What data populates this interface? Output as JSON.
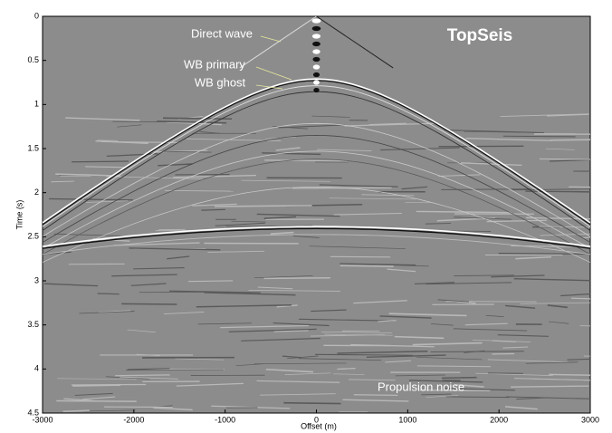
{
  "chart_data": {
    "type": "seismic",
    "title": "TopSeis",
    "x_label": "Offset (m)",
    "y_label": "Time (s)",
    "xlim": [
      -3000,
      3000
    ],
    "xticks": [
      -3000,
      -2000,
      -1000,
      0,
      1000,
      2000,
      3000
    ],
    "ylim": [
      0,
      4.5
    ],
    "yticks": [
      0,
      0.5,
      1,
      1.5,
      2,
      2.5,
      3,
      3.5,
      4,
      4.5
    ],
    "y_inverted": true,
    "annotations": [
      "Direct wave",
      "WB primary",
      "WB ghost",
      "Propulsion noise"
    ]
  }
}
